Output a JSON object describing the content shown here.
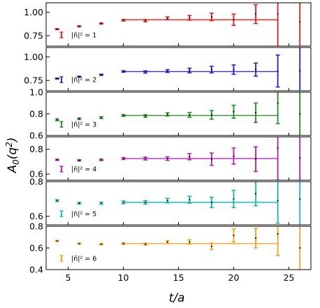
{
  "chart_data": {
    "type": "scatter",
    "xlabel": "t/a",
    "ylabel": "A_0(q^2)",
    "xlim": [
      3,
      27
    ],
    "x_ticks": [
      "5",
      "10",
      "15",
      "20",
      "25"
    ],
    "x_tick_values": [
      5,
      10,
      15,
      20,
      25
    ],
    "grid": false,
    "legend_placement": "lower-left",
    "fit_range": [
      10,
      24
    ],
    "panels": [
      {
        "label": "|n̄|² = 1",
        "color": "#e41a1c",
        "ylim": [
          0.64,
          1.1
        ],
        "y_ticks": [
          "0.75",
          "1.00"
        ],
        "y_tick_values": [
          0.75,
          1.0
        ],
        "fit": {
          "value": 0.92,
          "err": 0.01
        },
        "points": [
          {
            "x": 4,
            "y": 0.82,
            "err": 0.005
          },
          {
            "x": 6,
            "y": 0.85,
            "err": 0.005
          },
          {
            "x": 8,
            "y": 0.88,
            "err": 0.006
          },
          {
            "x": 10,
            "y": 0.915,
            "err": 0.008
          },
          {
            "x": 12,
            "y": 0.91,
            "err": 0.012
          },
          {
            "x": 14,
            "y": 0.935,
            "err": 0.015
          },
          {
            "x": 16,
            "y": 0.94,
            "err": 0.025
          },
          {
            "x": 18,
            "y": 0.95,
            "err": 0.04
          },
          {
            "x": 20,
            "y": 0.92,
            "err": 0.06
          },
          {
            "x": 22,
            "y": 0.98,
            "err": 0.1
          },
          {
            "x": 24,
            "y": 0.98,
            "err": 0.4
          },
          {
            "x": 26,
            "y": 0.9,
            "err": 0.6
          }
        ]
      },
      {
        "label": "|n̄|² = 2",
        "color": "#1f1fd6",
        "ylim": [
          0.64,
          1.1
        ],
        "y_ticks": [
          "0.75",
          "1.00"
        ],
        "y_tick_values": [
          0.75,
          1.0
        ],
        "fit": {
          "value": 0.845,
          "err": 0.006
        },
        "points": [
          {
            "x": 4,
            "y": 0.77,
            "err": 0.005
          },
          {
            "x": 6,
            "y": 0.79,
            "err": 0.005
          },
          {
            "x": 8,
            "y": 0.81,
            "err": 0.006
          },
          {
            "x": 10,
            "y": 0.845,
            "err": 0.008
          },
          {
            "x": 12,
            "y": 0.84,
            "err": 0.012
          },
          {
            "x": 14,
            "y": 0.85,
            "err": 0.015
          },
          {
            "x": 16,
            "y": 0.855,
            "err": 0.025
          },
          {
            "x": 18,
            "y": 0.865,
            "err": 0.035
          },
          {
            "x": 20,
            "y": 0.865,
            "err": 0.05
          },
          {
            "x": 22,
            "y": 0.865,
            "err": 0.07
          },
          {
            "x": 24,
            "y": 0.85,
            "err": 0.17
          },
          {
            "x": 26,
            "y": 0.85,
            "err": 0.4
          }
        ]
      },
      {
        "label": "|n̄|² = 3",
        "color": "#1f8a1f",
        "ylim": [
          0.6,
          1.0
        ],
        "y_ticks": [
          "0.6",
          "0.8",
          "1.0"
        ],
        "y_tick_values": [
          0.6,
          0.8,
          1.0
        ],
        "fit": {
          "value": 0.785,
          "err": 0.006
        },
        "points": [
          {
            "x": 4,
            "y": 0.745,
            "err": 0.008
          },
          {
            "x": 6,
            "y": 0.755,
            "err": 0.008
          },
          {
            "x": 8,
            "y": 0.765,
            "err": 0.008
          },
          {
            "x": 10,
            "y": 0.785,
            "err": 0.008
          },
          {
            "x": 12,
            "y": 0.78,
            "err": 0.012
          },
          {
            "x": 14,
            "y": 0.795,
            "err": 0.015
          },
          {
            "x": 16,
            "y": 0.79,
            "err": 0.022
          },
          {
            "x": 18,
            "y": 0.79,
            "err": 0.04
          },
          {
            "x": 20,
            "y": 0.82,
            "err": 0.06
          },
          {
            "x": 22,
            "y": 0.81,
            "err": 0.09
          },
          {
            "x": 24,
            "y": 0.9,
            "err": 0.19
          },
          {
            "x": 26,
            "y": 0.8,
            "err": 0.4
          }
        ]
      },
      {
        "label": "|n̄|² = 4",
        "color": "#b41bb4",
        "ylim": [
          0.55,
          0.9
        ],
        "y_ticks": [
          "0.6",
          "0.8"
        ],
        "y_tick_values": [
          0.6,
          0.8
        ],
        "fit": {
          "value": 0.725,
          "err": 0.006
        },
        "points": [
          {
            "x": 4,
            "y": 0.715,
            "err": 0.005
          },
          {
            "x": 6,
            "y": 0.71,
            "err": 0.005
          },
          {
            "x": 8,
            "y": 0.715,
            "err": 0.006
          },
          {
            "x": 10,
            "y": 0.725,
            "err": 0.008
          },
          {
            "x": 12,
            "y": 0.725,
            "err": 0.012
          },
          {
            "x": 14,
            "y": 0.725,
            "err": 0.015
          },
          {
            "x": 16,
            "y": 0.74,
            "err": 0.025
          },
          {
            "x": 18,
            "y": 0.72,
            "err": 0.05
          },
          {
            "x": 20,
            "y": 0.745,
            "err": 0.065
          },
          {
            "x": 22,
            "y": 0.72,
            "err": 0.1
          },
          {
            "x": 24,
            "y": 0.81,
            "err": 0.26
          },
          {
            "x": 26,
            "y": 0.73,
            "err": 0.5
          }
        ]
      },
      {
        "label": "|n̄|² = 5",
        "color": "#17b3b3",
        "ylim": [
          0.55,
          0.8
        ],
        "y_ticks": [
          "0.6",
          "0.8"
        ],
        "y_tick_values": [
          0.6,
          0.8
        ],
        "fit": {
          "value": 0.68,
          "err": 0.006
        },
        "points": [
          {
            "x": 4,
            "y": 0.69,
            "err": 0.005
          },
          {
            "x": 6,
            "y": 0.675,
            "err": 0.005
          },
          {
            "x": 8,
            "y": 0.675,
            "err": 0.006
          },
          {
            "x": 10,
            "y": 0.68,
            "err": 0.008
          },
          {
            "x": 12,
            "y": 0.68,
            "err": 0.01
          },
          {
            "x": 14,
            "y": 0.69,
            "err": 0.013
          },
          {
            "x": 16,
            "y": 0.695,
            "err": 0.02
          },
          {
            "x": 18,
            "y": 0.68,
            "err": 0.03
          },
          {
            "x": 20,
            "y": 0.7,
            "err": 0.05
          },
          {
            "x": 22,
            "y": 0.73,
            "err": 0.07
          },
          {
            "x": 24,
            "y": 0.69,
            "err": 0.13
          },
          {
            "x": 26,
            "y": 0.7,
            "err": 0.3
          }
        ]
      },
      {
        "label": "|n̄|² = 6",
        "color": "#f2a21a",
        "ylim": [
          0.4,
          0.8
        ],
        "y_ticks": [
          "0.4",
          "0.6",
          "0.8"
        ],
        "y_tick_values": [
          0.4,
          0.6,
          0.8
        ],
        "fit": {
          "value": 0.64,
          "err": 0.006
        },
        "points": [
          {
            "x": 4,
            "y": 0.665,
            "err": 0.005
          },
          {
            "x": 6,
            "y": 0.64,
            "err": 0.005
          },
          {
            "x": 8,
            "y": 0.635,
            "err": 0.006
          },
          {
            "x": 10,
            "y": 0.64,
            "err": 0.008
          },
          {
            "x": 12,
            "y": 0.635,
            "err": 0.01
          },
          {
            "x": 14,
            "y": 0.655,
            "err": 0.013
          },
          {
            "x": 16,
            "y": 0.655,
            "err": 0.02
          },
          {
            "x": 18,
            "y": 0.615,
            "err": 0.03
          },
          {
            "x": 20,
            "y": 0.715,
            "err": 0.06
          },
          {
            "x": 22,
            "y": 0.69,
            "err": 0.09
          },
          {
            "x": 24,
            "y": 0.73,
            "err": 0.2
          },
          {
            "x": 26,
            "y": 0.6,
            "err": 0.35
          }
        ]
      }
    ]
  }
}
